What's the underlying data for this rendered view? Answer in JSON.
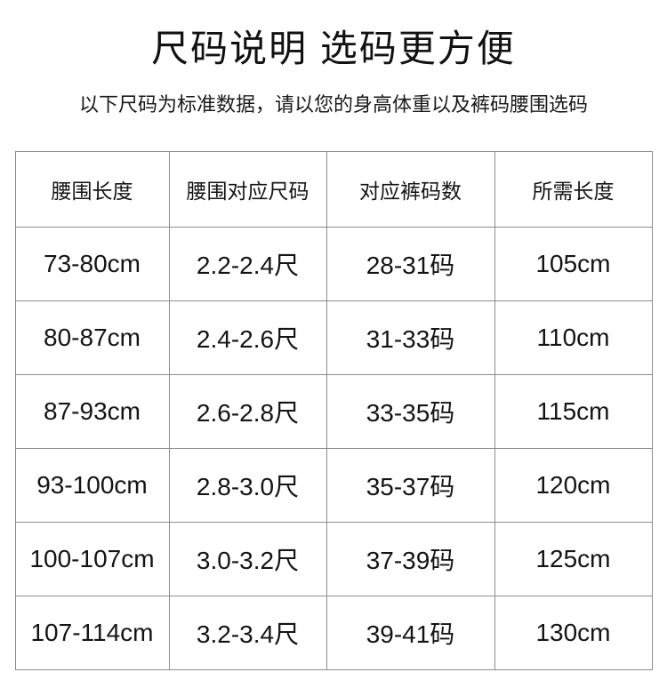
{
  "page": {
    "title": "尺码说明 选码更方便",
    "subtitle": "以下尺码为标准数据，请以您的身高体重以及裤码腰围选码"
  },
  "table": {
    "headers": [
      "腰围长度",
      "腰围对应尺码",
      "对应裤码数",
      "所需长度"
    ],
    "rows": [
      [
        "73-80cm",
        "2.2-2.4尺",
        "28-31码",
        "105cm"
      ],
      [
        "80-87cm",
        "2.4-2.6尺",
        "31-33码",
        "110cm"
      ],
      [
        "87-93cm",
        "2.6-2.8尺",
        "33-35码",
        "115cm"
      ],
      [
        "93-100cm",
        "2.8-3.0尺",
        "35-37码",
        "120cm"
      ],
      [
        "100-107cm",
        "3.0-3.2尺",
        "37-39码",
        "125cm"
      ],
      [
        "107-114cm",
        "3.2-3.4尺",
        "39-41码",
        "130cm"
      ]
    ]
  },
  "colors": {
    "text": "#141414",
    "border": "#8c8c8c",
    "background": "#ffffff"
  }
}
